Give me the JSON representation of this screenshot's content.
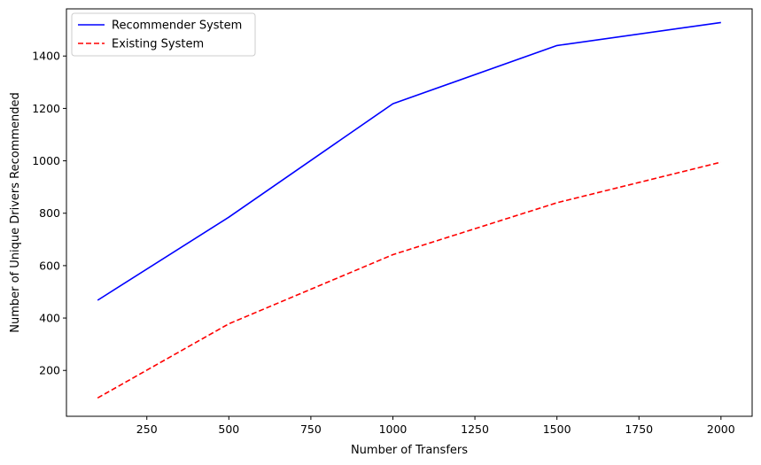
{
  "chart_data": {
    "type": "line",
    "title": "",
    "xlabel": "Number of Transfers",
    "ylabel": "Number of Unique Drivers Recommended",
    "x": [
      100,
      500,
      1000,
      1500,
      2000
    ],
    "series": [
      {
        "name": "Recommender System",
        "values": [
          468,
          785,
          1218,
          1440,
          1528
        ],
        "color": "#0000ff",
        "style": "solid"
      },
      {
        "name": "Existing System",
        "values": [
          95,
          378,
          642,
          840,
          995
        ],
        "color": "#ff0000",
        "style": "dashed"
      }
    ],
    "xlim": [
      5,
      2095
    ],
    "ylim": [
      25,
      1580
    ],
    "xticks": [
      250,
      500,
      750,
      1000,
      1250,
      1500,
      1750,
      2000
    ],
    "yticks": [
      200,
      400,
      600,
      800,
      1000,
      1200,
      1400
    ],
    "grid": false,
    "legend": "upper left"
  }
}
